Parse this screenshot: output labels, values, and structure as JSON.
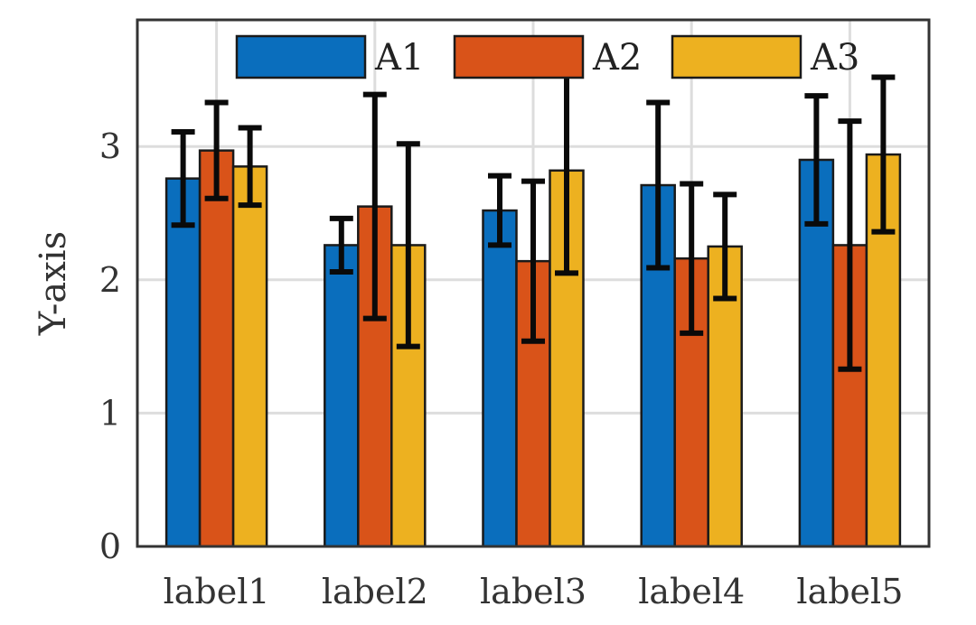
{
  "chart_data": {
    "type": "bar",
    "title": "",
    "xlabel": "",
    "ylabel": "Y-axis",
    "categories": [
      "label1",
      "label2",
      "label3",
      "label4",
      "label5"
    ],
    "ylim": [
      0,
      3.95
    ],
    "yticks": [
      0,
      1,
      2,
      3
    ],
    "grid": true,
    "legend_position": "top",
    "series": [
      {
        "name": "A1",
        "color": "#0a6ebd",
        "values": [
          2.76,
          2.26,
          2.52,
          2.71,
          2.9
        ],
        "errors": [
          0.35,
          0.2,
          0.26,
          0.62,
          0.48
        ]
      },
      {
        "name": "A2",
        "color": "#d95319",
        "values": [
          2.97,
          2.55,
          2.14,
          2.16,
          2.26
        ],
        "errors": [
          0.36,
          0.84,
          0.6,
          0.56,
          0.93
        ]
      },
      {
        "name": "A3",
        "color": "#edb120",
        "values": [
          2.85,
          2.26,
          2.82,
          2.25,
          2.94
        ],
        "errors": [
          0.29,
          0.76,
          0.77,
          0.39,
          0.58
        ]
      }
    ]
  }
}
